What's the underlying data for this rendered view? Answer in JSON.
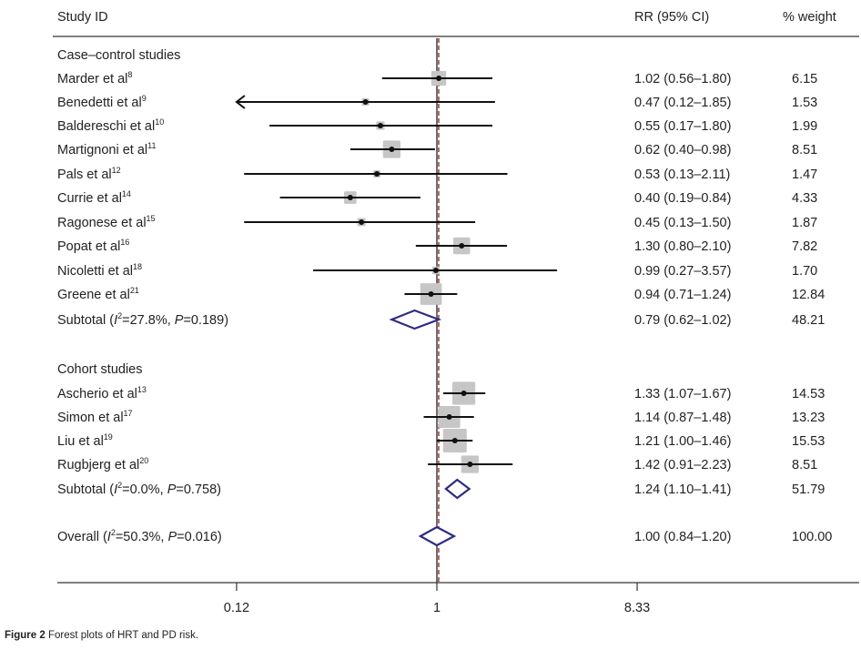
{
  "chart_data": {
    "type": "forest",
    "scale": "log",
    "headers": {
      "study": "Study ID",
      "rr": "RR (95% CI)",
      "weight": "% weight"
    },
    "x_ticks": [
      {
        "value": 0.12,
        "label": "0.12"
      },
      {
        "value": 1,
        "label": "1"
      },
      {
        "value": 8.33,
        "label": "8.33"
      }
    ],
    "null_value": 1,
    "overall_line_value": 1.0,
    "groups": [
      {
        "title": "Case–control studies",
        "studies": [
          {
            "name": "Marder et al",
            "ref": "8",
            "rr": 1.02,
            "lo": 0.56,
            "hi": 1.8,
            "ci_text": "1.02 (0.56–1.80)",
            "weight": "6.15"
          },
          {
            "name": "Benedetti et al",
            "ref": "9",
            "rr": 0.47,
            "lo": 0.12,
            "hi": 1.85,
            "ci_text": "0.47 (0.12–1.85)",
            "weight": "1.53",
            "arrow_left": true
          },
          {
            "name": "Baldereschi et al",
            "ref": "10",
            "rr": 0.55,
            "lo": 0.17,
            "hi": 1.8,
            "ci_text": "0.55 (0.17–1.80)",
            "weight": "1.99"
          },
          {
            "name": "Martignoni et al",
            "ref": "11",
            "rr": 0.62,
            "lo": 0.4,
            "hi": 0.98,
            "ci_text": "0.62 (0.40–0.98)",
            "weight": "8.51"
          },
          {
            "name": "Pals et al",
            "ref": "12",
            "rr": 0.53,
            "lo": 0.13,
            "hi": 2.11,
            "ci_text": "0.53 (0.13–2.11)",
            "weight": "1.47"
          },
          {
            "name": "Currie et al",
            "ref": "14",
            "rr": 0.4,
            "lo": 0.19,
            "hi": 0.84,
            "ci_text": "0.40 (0.19–0.84)",
            "weight": "4.33"
          },
          {
            "name": "Ragonese et al",
            "ref": "15",
            "rr": 0.45,
            "lo": 0.13,
            "hi": 1.5,
            "ci_text": "0.45 (0.13–1.50)",
            "weight": "1.87"
          },
          {
            "name": "Popat et al",
            "ref": "16",
            "rr": 1.3,
            "lo": 0.8,
            "hi": 2.1,
            "ci_text": "1.30 (0.80–2.10)",
            "weight": "7.82"
          },
          {
            "name": "Nicoletti et al",
            "ref": "18",
            "rr": 0.99,
            "lo": 0.27,
            "hi": 3.57,
            "ci_text": "0.99 (0.27–3.57)",
            "weight": "1.70"
          },
          {
            "name": "Greene et al",
            "ref": "21",
            "rr": 0.94,
            "lo": 0.71,
            "hi": 1.24,
            "ci_text": "0.94 (0.71–1.24)",
            "weight": "12.84"
          }
        ],
        "subtotal": {
          "label": "Subtotal",
          "i2": "27.8%",
          "p": "0.189",
          "rr": 0.79,
          "lo": 0.62,
          "hi": 1.02,
          "ci_text": "0.79 (0.62–1.02)",
          "weight": "48.21"
        }
      },
      {
        "title": "Cohort studies",
        "studies": [
          {
            "name": "Ascherio et al",
            "ref": "13",
            "rr": 1.33,
            "lo": 1.07,
            "hi": 1.67,
            "ci_text": "1.33 (1.07–1.67)",
            "weight": "14.53"
          },
          {
            "name": "Simon et al",
            "ref": "17",
            "rr": 1.14,
            "lo": 0.87,
            "hi": 1.48,
            "ci_text": "1.14 (0.87–1.48)",
            "weight": "13.23"
          },
          {
            "name": "Liu et al",
            "ref": "19",
            "rr": 1.21,
            "lo": 1.0,
            "hi": 1.46,
            "ci_text": "1.21 (1.00–1.46)",
            "weight": "15.53"
          },
          {
            "name": "Rugbjerg et al",
            "ref": "20",
            "rr": 1.42,
            "lo": 0.91,
            "hi": 2.23,
            "ci_text": "1.42 (0.91–2.23)",
            "weight": "8.51"
          }
        ],
        "subtotal": {
          "label": "Subtotal",
          "i2": "0.0%",
          "p": "0.758",
          "rr": 1.24,
          "lo": 1.1,
          "hi": 1.41,
          "ci_text": "1.24 (1.10–1.41)",
          "weight": "51.79"
        }
      }
    ],
    "overall": {
      "label": "Overall",
      "i2": "50.3%",
      "p": "0.016",
      "rr": 1.0,
      "lo": 0.84,
      "hi": 1.2,
      "ci_text": "1.00 (0.84–1.20)",
      "weight": "100.00"
    },
    "stat_symbols": {
      "i": "I",
      "sup": "2",
      "p": "P"
    }
  },
  "caption": {
    "label": "Figure 2",
    "text": "Forest plots of HRT and PD risk."
  },
  "colors": {
    "box": "#c6c6c6",
    "diamond": "#2e2b85",
    "null_line": "#222222",
    "overall_line": "#8b1a1a",
    "text": "#222222"
  }
}
